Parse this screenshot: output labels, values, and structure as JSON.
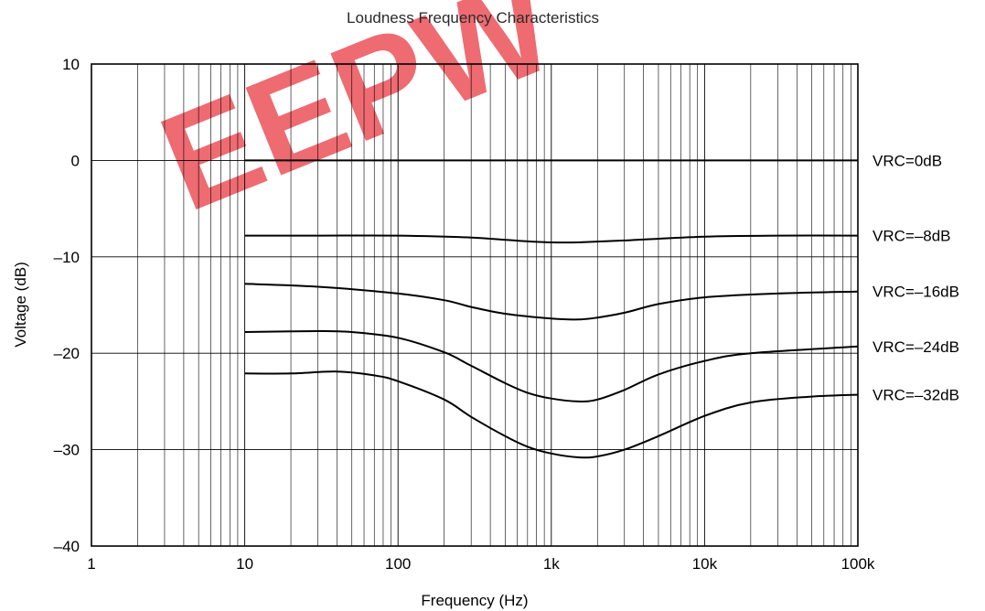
{
  "chart_data": {
    "type": "line",
    "title": "Loudness Frequency Characteristics",
    "xlabel": "Frequency (Hz)",
    "ylabel": "Voltage (dB)",
    "x_scale": "log",
    "xlim": [
      1,
      100000
    ],
    "ylim": [
      -40,
      10
    ],
    "grid": true,
    "x_tick_values": [
      1,
      10,
      100,
      1000,
      10000,
      100000
    ],
    "x_tick_labels": [
      "1",
      "10",
      "100",
      "1k",
      "10k",
      "100k"
    ],
    "y_tick_values": [
      10,
      0,
      -10,
      -20,
      -30,
      -40
    ],
    "y_tick_labels": [
      "10",
      "0",
      "–10",
      "–20",
      "–30",
      "–40"
    ],
    "series": [
      {
        "name": "VRC=0dB",
        "x": [
          10,
          100,
          1000,
          10000,
          100000
        ],
        "y": [
          0,
          0,
          0,
          0,
          0
        ]
      },
      {
        "name": "VRC=–8dB",
        "x": [
          10,
          30,
          100,
          300,
          700,
          1000,
          1500,
          3000,
          10000,
          30000,
          100000
        ],
        "y": [
          -7.8,
          -7.8,
          -7.8,
          -8.0,
          -8.4,
          -8.5,
          -8.5,
          -8.3,
          -7.9,
          -7.8,
          -7.8
        ]
      },
      {
        "name": "VRC=–16dB",
        "x": [
          10,
          30,
          100,
          200,
          300,
          500,
          1000,
          1500,
          2000,
          3000,
          5000,
          10000,
          30000,
          100000
        ],
        "y": [
          -12.8,
          -13.1,
          -13.8,
          -14.5,
          -15.2,
          -15.9,
          -16.4,
          -16.5,
          -16.3,
          -15.8,
          -14.9,
          -14.2,
          -13.8,
          -13.6
        ]
      },
      {
        "name": "VRC=–24dB",
        "x": [
          10,
          30,
          50,
          100,
          200,
          300,
          500,
          700,
          1000,
          1500,
          2000,
          3000,
          5000,
          10000,
          20000,
          100000
        ],
        "y": [
          -17.8,
          -17.7,
          -17.8,
          -18.4,
          -19.9,
          -21.3,
          -23.1,
          -24.1,
          -24.7,
          -25.0,
          -24.8,
          -23.8,
          -22.2,
          -20.8,
          -20.0,
          -19.3
        ]
      },
      {
        "name": "VRC=–32dB",
        "x": [
          10,
          20,
          40,
          70,
          100,
          200,
          300,
          500,
          700,
          1000,
          1500,
          2000,
          3000,
          5000,
          10000,
          20000,
          50000,
          100000
        ],
        "y": [
          -22.1,
          -22.1,
          -21.9,
          -22.3,
          -22.9,
          -24.8,
          -26.6,
          -28.6,
          -29.7,
          -30.4,
          -30.8,
          -30.7,
          -30.0,
          -28.6,
          -26.5,
          -25.1,
          -24.5,
          -24.3
        ]
      }
    ],
    "watermark": {
      "text": "EEPW",
      "color": "#e8323a"
    }
  }
}
